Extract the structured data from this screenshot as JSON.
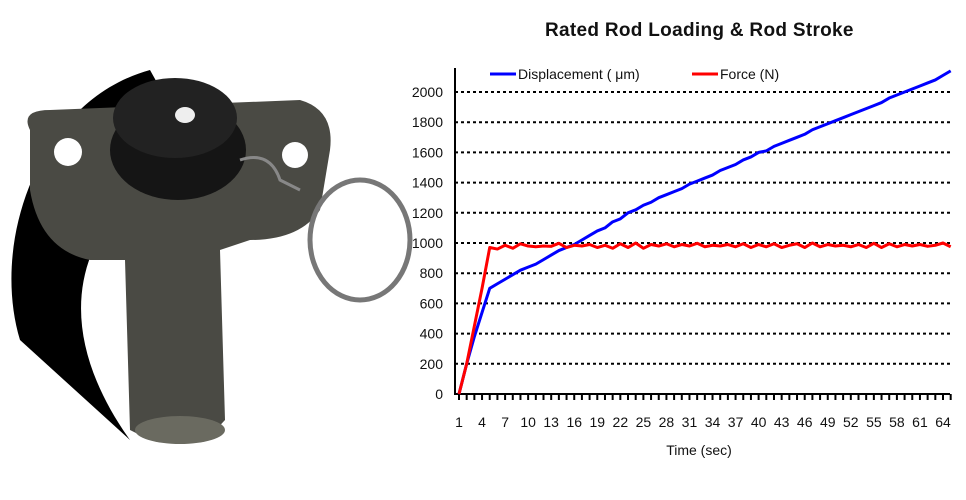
{
  "chart_data": {
    "type": "line",
    "title": "Rated Rod Loading & Rod Stroke",
    "xlabel": "Time (sec)",
    "ylabel": "",
    "ylim": [
      0,
      2150
    ],
    "yticks": [
      0,
      200,
      400,
      600,
      800,
      1000,
      1200,
      1400,
      1600,
      1800,
      2000
    ],
    "xticks": [
      1,
      4,
      7,
      10,
      13,
      16,
      19,
      22,
      25,
      28,
      31,
      34,
      37,
      40,
      43,
      46,
      49,
      52,
      55,
      58,
      61,
      64
    ],
    "xlim": [
      1,
      65
    ],
    "grid": "horizontal dotted",
    "legend": "top",
    "x": [
      1,
      2,
      3,
      4,
      5,
      6,
      7,
      8,
      9,
      10,
      11,
      12,
      13,
      14,
      15,
      16,
      17,
      18,
      19,
      20,
      21,
      22,
      23,
      24,
      25,
      26,
      27,
      28,
      29,
      30,
      31,
      32,
      33,
      34,
      35,
      36,
      37,
      38,
      39,
      40,
      41,
      42,
      43,
      44,
      45,
      46,
      47,
      48,
      49,
      50,
      51,
      52,
      53,
      54,
      55,
      56,
      57,
      58,
      59,
      60,
      61,
      62,
      63,
      64,
      65
    ],
    "series": [
      {
        "name": "Displacement ( μm)",
        "color": "#0000ff",
        "values": [
          0,
          200,
          380,
          540,
          700,
          730,
          760,
          790,
          820,
          840,
          860,
          890,
          920,
          950,
          970,
          990,
          1020,
          1050,
          1080,
          1100,
          1140,
          1160,
          1200,
          1220,
          1250,
          1270,
          1300,
          1320,
          1340,
          1360,
          1390,
          1410,
          1430,
          1450,
          1480,
          1500,
          1520,
          1550,
          1570,
          1600,
          1610,
          1640,
          1660,
          1680,
          1700,
          1720,
          1750,
          1770,
          1790,
          1810,
          1830,
          1850,
          1870,
          1890,
          1910,
          1930,
          1960,
          1980,
          2000,
          2020,
          2040,
          2060,
          2080,
          2110,
          2140
        ]
      },
      {
        "name": "Force (N)",
        "color": "#ff0000",
        "values": [
          0,
          200,
          450,
          700,
          970,
          960,
          985,
          965,
          995,
          980,
          975,
          980,
          978,
          998,
          970,
          985,
          980,
          990,
          970,
          985,
          965,
          995,
          970,
          1000,
          965,
          990,
          980,
          995,
          975,
          990,
          980,
          998,
          975,
          985,
          980,
          990,
          975,
          995,
          970,
          990,
          975,
          995,
          970,
          985,
          995,
          970,
          1000,
          975,
          990,
          980,
          985,
          975,
          990,
          970,
          998,
          970,
          995,
          975,
          990,
          980,
          990,
          978,
          985,
          1000,
          975
        ]
      }
    ]
  }
}
